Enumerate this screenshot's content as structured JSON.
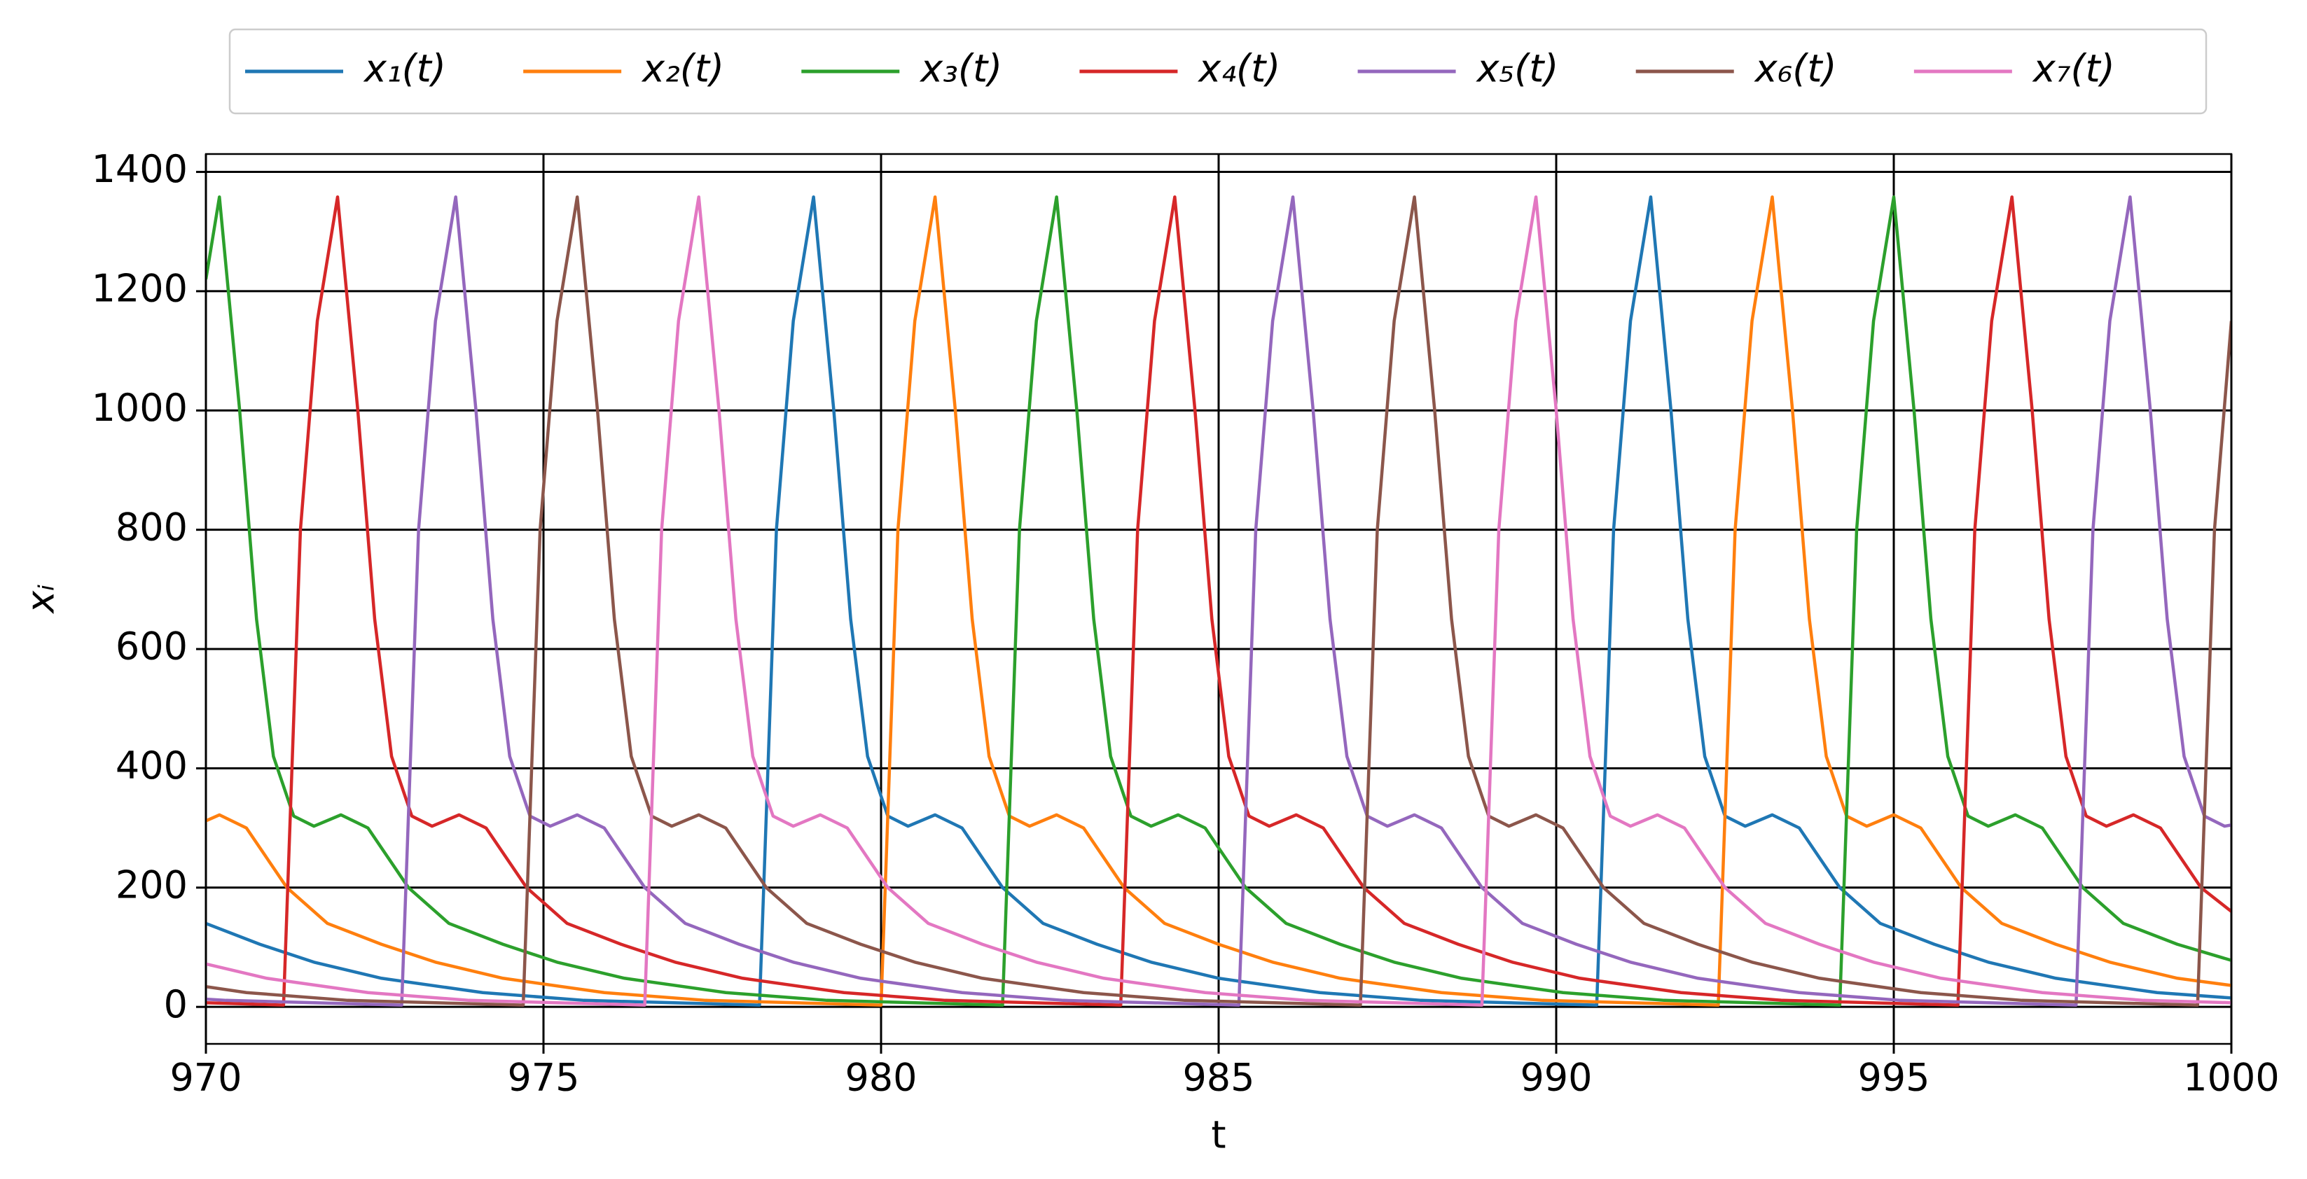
{
  "chart_data": {
    "type": "line",
    "xlabel": "t",
    "ylabel": "xᵢ",
    "xlim": [
      970,
      1000
    ],
    "xticks": [
      970,
      975,
      980,
      985,
      990,
      995,
      1000
    ],
    "ylim": [
      -62,
      1430
    ],
    "yticks": [
      0,
      200,
      400,
      600,
      800,
      1000,
      1200,
      1400
    ],
    "grid": true,
    "grid_color": "#000000",
    "legend": "top",
    "series": [
      {
        "name": "x₁(t)",
        "color": "#1f77b4",
        "x": [
          970,
          970.8,
          971.6,
          972.6,
          974.1,
          975.6,
          978.2,
          978.45,
          978.7,
          979.0,
          979.3,
          979.55,
          979.8,
          980.1,
          980.4,
          980.8,
          981.2,
          981.8,
          982.4,
          983.2,
          984.0,
          985.0,
          986.5,
          988.0,
          990.6,
          990.85,
          991.1,
          991.4,
          991.7,
          991.95,
          992.2,
          992.5,
          992.8,
          993.2,
          993.6,
          994.2,
          994.8,
          995.6,
          996.4,
          997.4,
          998.9,
          1000
        ],
        "values": [
          140,
          105,
          75,
          48,
          24,
          11,
          3,
          800,
          1150,
          1358,
          1000,
          650,
          420,
          320,
          303,
          322,
          300,
          200,
          140,
          105,
          75,
          48,
          24,
          11,
          3,
          800,
          1150,
          1358,
          1000,
          650,
          420,
          320,
          303,
          322,
          300,
          200,
          140,
          105,
          75,
          48,
          24,
          15
        ]
      },
      {
        "name": "x₂(t)",
        "color": "#ff7f0e",
        "x": [
          970,
          970.2,
          970.6,
          971.2,
          971.8,
          972.6,
          973.4,
          974.4,
          975.9,
          977.4,
          980.0,
          980.25,
          980.5,
          980.8,
          981.1,
          981.35,
          981.6,
          981.9,
          982.2,
          982.6,
          983.0,
          983.6,
          984.2,
          985.0,
          985.8,
          986.8,
          988.3,
          989.8,
          992.4,
          992.65,
          992.9,
          993.2,
          993.5,
          993.75,
          994.0,
          994.3,
          994.6,
          995.0,
          995.4,
          996.0,
          996.6,
          997.4,
          998.2,
          999.2,
          1000
        ],
        "values": [
          312,
          322,
          300,
          200,
          140,
          105,
          75,
          48,
          24,
          11,
          3,
          800,
          1150,
          1358,
          1000,
          650,
          420,
          320,
          303,
          322,
          300,
          200,
          140,
          105,
          75,
          48,
          24,
          11,
          3,
          800,
          1150,
          1358,
          1000,
          650,
          420,
          320,
          303,
          322,
          300,
          200,
          140,
          105,
          75,
          48,
          36
        ]
      },
      {
        "name": "x₃(t)",
        "color": "#2ca02c",
        "x": [
          970,
          970.2,
          970.5,
          970.75,
          971.0,
          971.3,
          971.6,
          972.0,
          972.4,
          973.0,
          973.6,
          974.4,
          975.2,
          976.2,
          977.7,
          979.2,
          981.8,
          982.05,
          982.3,
          982.6,
          982.9,
          983.15,
          983.4,
          983.7,
          984.0,
          984.4,
          984.8,
          985.4,
          986.0,
          986.8,
          987.6,
          988.6,
          990.1,
          991.6,
          994.2,
          994.45,
          994.7,
          995.0,
          995.3,
          995.55,
          995.8,
          996.1,
          996.4,
          996.8,
          997.2,
          997.8,
          998.4,
          999.2,
          1000
        ],
        "values": [
          1220,
          1358,
          1000,
          650,
          420,
          320,
          303,
          322,
          300,
          200,
          140,
          105,
          75,
          48,
          24,
          11,
          3,
          800,
          1150,
          1358,
          1000,
          650,
          420,
          320,
          303,
          322,
          300,
          200,
          140,
          105,
          75,
          48,
          24,
          11,
          3,
          800,
          1150,
          1358,
          1000,
          650,
          420,
          320,
          303,
          322,
          300,
          200,
          140,
          105,
          78
        ]
      },
      {
        "name": "x₄(t)",
        "color": "#d62728",
        "x": [
          970,
          971.15,
          971.4,
          971.65,
          971.95,
          972.25,
          972.5,
          972.75,
          973.05,
          973.35,
          973.75,
          974.15,
          974.75,
          975.35,
          976.15,
          976.95,
          977.95,
          979.45,
          980.95,
          983.55,
          983.8,
          984.05,
          984.35,
          984.65,
          984.9,
          985.15,
          985.45,
          985.75,
          986.15,
          986.55,
          987.15,
          987.75,
          988.55,
          989.35,
          990.35,
          991.85,
          993.35,
          995.95,
          996.2,
          996.45,
          996.75,
          997.05,
          997.3,
          997.55,
          997.85,
          998.15,
          998.55,
          998.95,
          999.55,
          1000
        ],
        "values": [
          7,
          3,
          800,
          1150,
          1358,
          1000,
          650,
          420,
          320,
          303,
          322,
          300,
          200,
          140,
          105,
          75,
          48,
          24,
          11,
          3,
          800,
          1150,
          1358,
          1000,
          650,
          420,
          320,
          303,
          322,
          300,
          200,
          140,
          105,
          75,
          48,
          24,
          11,
          3,
          800,
          1150,
          1358,
          1000,
          650,
          420,
          320,
          303,
          322,
          300,
          200,
          160
        ]
      },
      {
        "name": "x₅(t)",
        "color": "#9467bd",
        "x": [
          970,
          970.3,
          972.9,
          973.15,
          973.4,
          973.7,
          974.0,
          974.25,
          974.5,
          974.8,
          975.1,
          975.5,
          975.9,
          976.5,
          977.1,
          977.9,
          978.7,
          979.7,
          981.2,
          982.7,
          985.3,
          985.55,
          985.8,
          986.1,
          986.4,
          986.65,
          986.9,
          987.2,
          987.5,
          987.9,
          988.3,
          988.9,
          989.5,
          990.3,
          991.1,
          992.1,
          993.6,
          995.1,
          997.7,
          997.95,
          998.2,
          998.5,
          998.8,
          999.05,
          999.3,
          999.6,
          999.9,
          1000
        ],
        "values": [
          13,
          11,
          3,
          800,
          1150,
          1358,
          1000,
          650,
          420,
          320,
          303,
          322,
          300,
          200,
          140,
          105,
          75,
          48,
          24,
          11,
          3,
          800,
          1150,
          1358,
          1000,
          650,
          420,
          320,
          303,
          322,
          300,
          200,
          140,
          105,
          75,
          48,
          24,
          11,
          3,
          800,
          1150,
          1358,
          1000,
          650,
          420,
          320,
          303,
          305
        ]
      },
      {
        "name": "x₆(t)",
        "color": "#8c564b",
        "x": [
          970,
          970.6,
          972.1,
          974.7,
          974.95,
          975.2,
          975.5,
          975.8,
          976.05,
          976.3,
          976.6,
          976.9,
          977.3,
          977.7,
          978.3,
          978.9,
          979.7,
          980.5,
          981.5,
          983.0,
          984.5,
          987.1,
          987.35,
          987.6,
          987.9,
          988.2,
          988.45,
          988.7,
          989.0,
          989.3,
          989.7,
          990.1,
          990.7,
          991.3,
          992.1,
          992.9,
          993.9,
          995.4,
          996.9,
          999.5,
          999.75,
          1000
        ],
        "values": [
          34,
          24,
          11,
          3,
          800,
          1150,
          1358,
          1000,
          650,
          420,
          320,
          303,
          322,
          300,
          200,
          140,
          105,
          75,
          48,
          24,
          11,
          3,
          800,
          1150,
          1358,
          1000,
          650,
          420,
          320,
          303,
          322,
          300,
          200,
          140,
          105,
          75,
          48,
          24,
          11,
          3,
          800,
          1150
        ]
      },
      {
        "name": "x₇(t)",
        "color": "#e377c2",
        "x": [
          970,
          970.9,
          972.4,
          973.9,
          976.5,
          976.75,
          977.0,
          977.3,
          977.6,
          977.85,
          978.1,
          978.4,
          978.7,
          979.1,
          979.5,
          980.1,
          980.7,
          981.5,
          982.3,
          983.3,
          984.8,
          986.3,
          988.9,
          989.15,
          989.4,
          989.7,
          990.0,
          990.25,
          990.5,
          990.8,
          991.1,
          991.5,
          991.9,
          992.5,
          993.1,
          993.9,
          994.7,
          995.7,
          997.2,
          998.7,
          1000
        ],
        "values": [
          72,
          48,
          24,
          11,
          3,
          800,
          1150,
          1358,
          1000,
          650,
          420,
          320,
          303,
          322,
          300,
          200,
          140,
          105,
          75,
          48,
          24,
          11,
          3,
          800,
          1150,
          1358,
          1000,
          650,
          420,
          320,
          303,
          322,
          300,
          200,
          140,
          105,
          75,
          48,
          24,
          11,
          7
        ]
      }
    ]
  }
}
